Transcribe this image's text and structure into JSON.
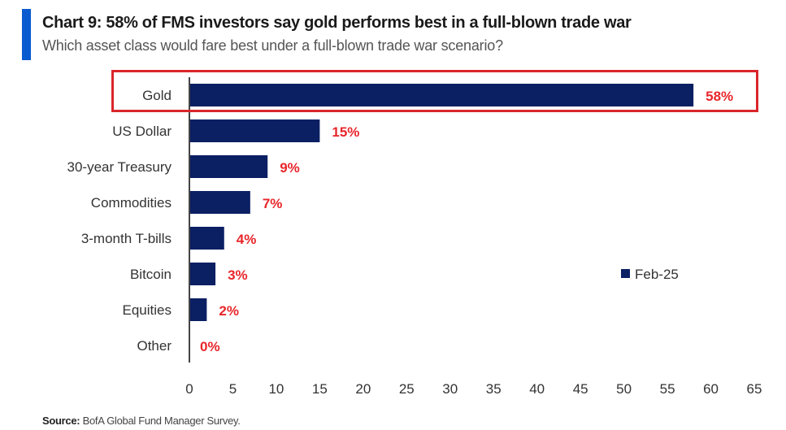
{
  "header": {
    "title": "Chart 9: 58% of FMS investors say gold performs best in a full-blown trade war",
    "subtitle": "Which asset class would fare best under a full-blown trade war scenario?"
  },
  "footer": {
    "source_label": "Source:",
    "source_text": "BofA Global Fund Manager Survey."
  },
  "chart_data": {
    "type": "bar",
    "orientation": "horizontal",
    "categories": [
      "Gold",
      "US Dollar",
      "30-year Treasury",
      "Commodities",
      "3-month T-bills",
      "Bitcoin",
      "Equities",
      "Other"
    ],
    "series": [
      {
        "name": "Feb-25",
        "values": [
          58,
          15,
          9,
          7,
          4,
          3,
          2,
          0
        ],
        "color": "#0b1f63"
      }
    ],
    "data_labels": [
      "58%",
      "15%",
      "9%",
      "7%",
      "4%",
      "3%",
      "2%",
      "0%"
    ],
    "data_label_color": "#e8262b",
    "xlim": [
      0,
      65
    ],
    "xticks": [
      0,
      5,
      10,
      15,
      20,
      25,
      30,
      35,
      40,
      45,
      50,
      55,
      60,
      65
    ],
    "grid": false,
    "legend_position": "right",
    "highlight": {
      "category": "Gold",
      "color": "#d9262b"
    }
  }
}
